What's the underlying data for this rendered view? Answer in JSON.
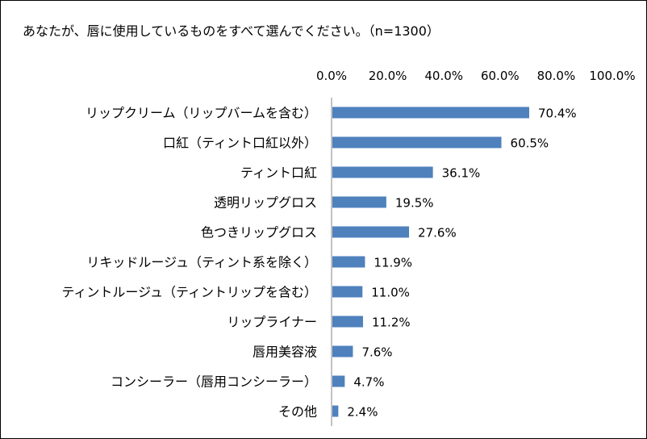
{
  "chart_data": {
    "type": "bar",
    "orientation": "horizontal",
    "title": "あなたが、唇に使用しているものをすべて選んでください。（n=1300）",
    "xlabel": "",
    "ylabel": "",
    "xlim": [
      0,
      100
    ],
    "tick_labels": [
      "0.0%",
      "20.0%",
      "40.0%",
      "60.0%",
      "80.0%",
      "100.0%"
    ],
    "tick_values": [
      0,
      20,
      40,
      60,
      80,
      100
    ],
    "axis_position": "top",
    "grid": false,
    "bar_color": "#4f81bd",
    "categories": [
      "リップクリーム（リップバームを含む）",
      "口紅（ティント口紅以外）",
      "ティント口紅",
      "透明リップグロス",
      "色つきリップグロス",
      "リキッドルージュ（ティント系を除く）",
      "ティントルージュ（ティントリップを含む）",
      "リップライナー",
      "唇用美容液",
      "コンシーラー（唇用コンシーラー）",
      "その他"
    ],
    "values": [
      70.4,
      60.5,
      36.1,
      19.5,
      27.6,
      11.9,
      11.0,
      11.2,
      7.6,
      4.7,
      2.4
    ],
    "value_labels": [
      "70.4%",
      "60.5%",
      "36.1%",
      "19.5%",
      "27.6%",
      "11.9%",
      "11.0%",
      "11.2%",
      "7.6%",
      "4.7%",
      "2.4%"
    ]
  }
}
